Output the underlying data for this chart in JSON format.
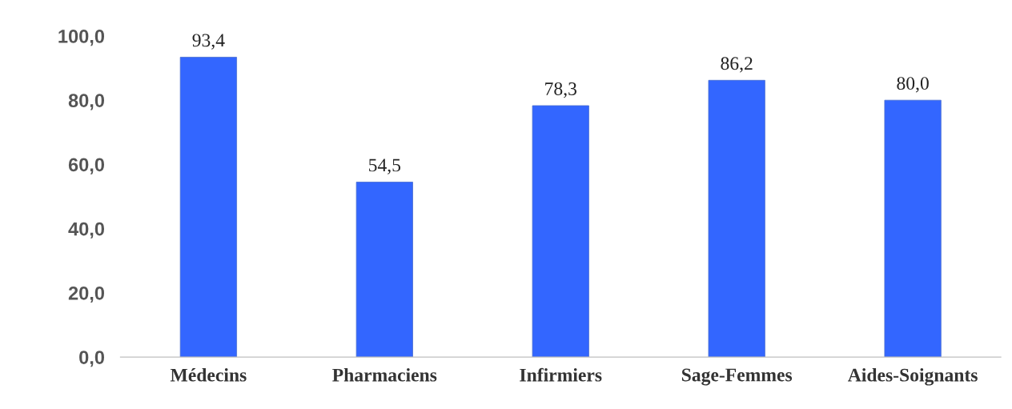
{
  "chart_data": {
    "type": "bar",
    "categories": [
      "Médecins",
      "Pharmaciens",
      "Infirmiers",
      "Sage-Femmes",
      "Aides-Soignants"
    ],
    "values": [
      93.4,
      54.5,
      78.3,
      86.2,
      80.0
    ],
    "value_labels": [
      "93,4",
      "54,5",
      "78,3",
      "86,2",
      "80,0"
    ],
    "color": "#3366ff",
    "ylim": [
      0,
      100
    ],
    "yticks": [
      {
        "value": 0,
        "label": "0,0"
      },
      {
        "value": 20,
        "label": "20,0"
      },
      {
        "value": 40,
        "label": "40,0"
      },
      {
        "value": 60,
        "label": "60,0"
      },
      {
        "value": 80,
        "label": "80,0"
      },
      {
        "value": 100,
        "label": "100,0"
      }
    ],
    "grid": false,
    "legend": false
  }
}
